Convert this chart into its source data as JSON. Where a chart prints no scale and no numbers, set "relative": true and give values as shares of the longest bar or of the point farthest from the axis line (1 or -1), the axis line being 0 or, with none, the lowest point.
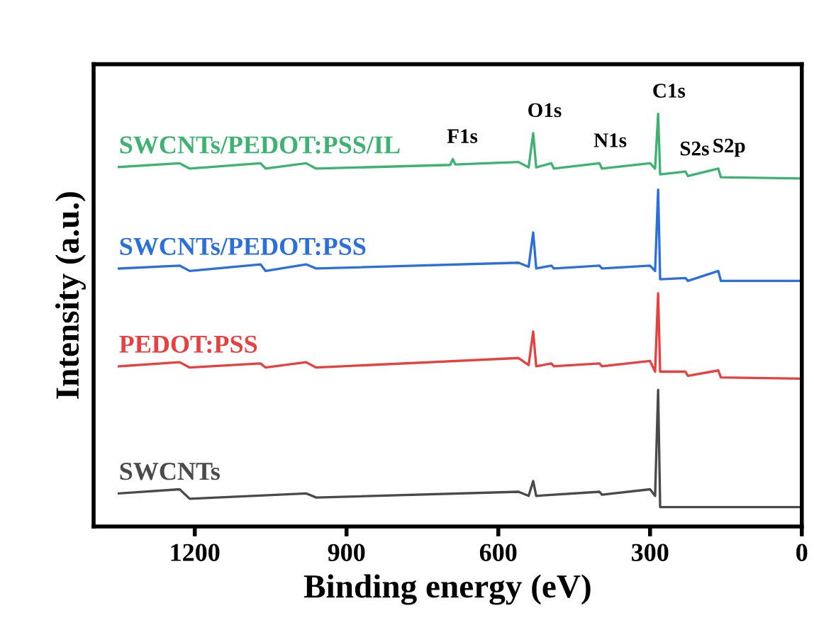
{
  "chart_data": {
    "type": "line",
    "relative": true,
    "xlabel": "Binding energy (eV)",
    "ylabel": "Intensity (a.u.)",
    "xlim": [
      1400,
      0
    ],
    "xticks": [
      1200,
      900,
      600,
      300,
      0
    ],
    "tick_labels": "x",
    "grid": false,
    "legend": false,
    "marker": "none",
    "line_style": "solid",
    "series": [
      {
        "name": "SWCNTs/PEDOT:PSS/IL",
        "color": "#3cb371",
        "x": [
          1350,
          1230,
          1210,
          1070,
          1060,
          980,
          960,
          695,
          690,
          685,
          560,
          540,
          531,
          525,
          495,
          490,
          400,
          395,
          300,
          290,
          284,
          280,
          230,
          225,
          165,
          160,
          0
        ],
        "values": [
          0.871,
          0.88,
          0.867,
          0.88,
          0.867,
          0.88,
          0.867,
          0.876,
          0.89,
          0.877,
          0.883,
          0.87,
          0.953,
          0.87,
          0.88,
          0.867,
          0.88,
          0.867,
          0.88,
          0.867,
          1.0,
          0.853,
          0.86,
          0.849,
          0.867,
          0.846,
          0.843
        ]
      },
      {
        "name": "SWCNTs/PEDOT:PSS",
        "color": "#2a6fdb",
        "x": [
          1350,
          1230,
          1210,
          1070,
          1060,
          980,
          960,
          560,
          540,
          531,
          525,
          495,
          490,
          400,
          395,
          300,
          290,
          284,
          280,
          230,
          225,
          165,
          160,
          0
        ],
        "values": [
          0.625,
          0.632,
          0.619,
          0.635,
          0.619,
          0.635,
          0.625,
          0.639,
          0.629,
          0.712,
          0.625,
          0.632,
          0.625,
          0.632,
          0.625,
          0.632,
          0.619,
          0.816,
          0.599,
          0.602,
          0.595,
          0.619,
          0.595,
          0.595
        ]
      },
      {
        "name": "PEDOT:PSS",
        "color": "#e8403f",
        "x": [
          1350,
          1230,
          1210,
          1070,
          1060,
          980,
          960,
          560,
          540,
          531,
          525,
          495,
          490,
          400,
          395,
          300,
          290,
          284,
          280,
          230,
          225,
          165,
          160,
          0
        ],
        "values": [
          0.388,
          0.398,
          0.385,
          0.395,
          0.385,
          0.398,
          0.385,
          0.408,
          0.391,
          0.472,
          0.388,
          0.395,
          0.388,
          0.395,
          0.388,
          0.401,
          0.375,
          0.565,
          0.375,
          0.375,
          0.365,
          0.378,
          0.361,
          0.358
        ]
      },
      {
        "name": "SWCNTs",
        "color": "#4a4a4a",
        "x": [
          1350,
          1230,
          1210,
          980,
          960,
          560,
          540,
          531,
          525,
          400,
          395,
          300,
          290,
          284,
          280,
          0
        ],
        "values": [
          0.08,
          0.09,
          0.067,
          0.08,
          0.07,
          0.084,
          0.074,
          0.11,
          0.074,
          0.084,
          0.077,
          0.09,
          0.074,
          0.331,
          0.047,
          0.047
        ]
      }
    ],
    "annotations": [
      {
        "text": "F1s",
        "x": 690,
        "y": 0.89
      },
      {
        "text": "O1s",
        "x": 531,
        "y": 0.953
      },
      {
        "text": "N1s",
        "x": 400,
        "y": 0.88
      },
      {
        "text": "C1s",
        "x": 284,
        "y": 1.0
      },
      {
        "text": "S2s",
        "x": 230,
        "y": 0.86
      },
      {
        "text": "S2p",
        "x": 165,
        "y": 0.867
      }
    ]
  }
}
